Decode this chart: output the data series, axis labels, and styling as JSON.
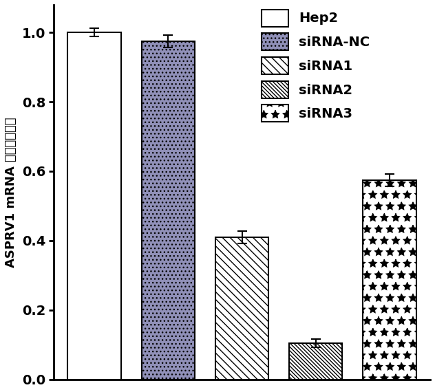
{
  "categories": [
    "Hep2",
    "siRNA-NC",
    "siRNA1",
    "siRNA2",
    "siRNA3"
  ],
  "values": [
    1.0,
    0.975,
    0.41,
    0.105,
    0.575
  ],
  "errors": [
    0.012,
    0.018,
    0.018,
    0.012,
    0.018
  ],
  "ylabel": "ASPRV1 mRNA 的相对表达量",
  "ylim": [
    0.0,
    1.08
  ],
  "yticks": [
    0.0,
    0.2,
    0.4,
    0.6,
    0.8,
    1.0
  ],
  "bar_width": 0.72,
  "face_colors": [
    "white",
    "#a0a0c0",
    "white",
    "white",
    "white"
  ],
  "hatch_patterns": [
    "",
    "...",
    "\\\\\\\\",
    "XXXX_placeholder",
    "oooo_placeholder"
  ],
  "edge_colors": [
    "black",
    "black",
    "black",
    "black",
    "black"
  ],
  "legend_labels": [
    "Hep2",
    "siRNA-NC",
    "siRNA1",
    "siRNA2",
    "siRNA3"
  ],
  "figsize": [
    6.32,
    5.7
  ],
  "dpi": 100
}
